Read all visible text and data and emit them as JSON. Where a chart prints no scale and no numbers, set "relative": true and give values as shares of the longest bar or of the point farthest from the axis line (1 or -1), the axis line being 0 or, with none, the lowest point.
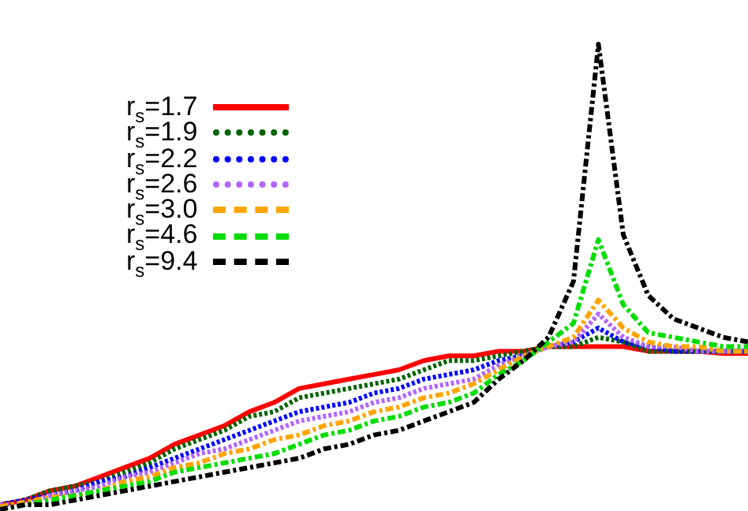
{
  "chart_data": {
    "type": "line",
    "relative": true,
    "tick_labels": false,
    "legend": "top left",
    "grid": false,
    "marker": "none",
    "categories": [
      null,
      null,
      null,
      null,
      null,
      null,
      null,
      null,
      null,
      null,
      null,
      null,
      null,
      null,
      null,
      null,
      null,
      null,
      null,
      null,
      null,
      null,
      null,
      null,
      null,
      null,
      null,
      null,
      null,
      null,
      null
    ],
    "series": [
      {
        "name": "r$_{s}$=1.7",
        "color": "#ff0000",
        "line_style": "solid",
        "values": [
          0.01,
          0.02,
          0.04,
          0.05,
          0.07,
          0.09,
          0.11,
          0.14,
          0.16,
          0.18,
          0.21,
          0.23,
          0.26,
          0.27,
          0.28,
          0.29,
          0.3,
          0.32,
          0.33,
          0.33,
          0.34,
          0.34,
          0.35,
          0.35,
          0.35,
          0.35,
          0.34,
          0.34,
          0.34,
          0.335,
          0.335
        ]
      },
      {
        "name": "r$_{s}$=1.9",
        "color": "#006400",
        "line_style": "dotted",
        "values": [
          0.01,
          0.02,
          0.04,
          0.05,
          0.06,
          0.08,
          0.1,
          0.13,
          0.15,
          0.17,
          0.2,
          0.21,
          0.24,
          0.25,
          0.26,
          0.27,
          0.28,
          0.3,
          0.32,
          0.32,
          0.33,
          0.34,
          0.35,
          0.35,
          0.37,
          0.36,
          0.34,
          0.34,
          0.34,
          0.34,
          0.34
        ]
      },
      {
        "name": "r$_{s}$=2.2",
        "color": "#0000ff",
        "line_style": "dotted",
        "values": [
          0.01,
          0.02,
          0.03,
          0.04,
          0.06,
          0.07,
          0.09,
          0.11,
          0.13,
          0.15,
          0.17,
          0.19,
          0.21,
          0.22,
          0.23,
          0.25,
          0.26,
          0.28,
          0.29,
          0.3,
          0.32,
          0.33,
          0.35,
          0.36,
          0.39,
          0.36,
          0.35,
          0.34,
          0.34,
          0.34,
          0.34
        ]
      },
      {
        "name": "r$_{s}$=2.6",
        "color": "#b266ff",
        "line_style": "dotted",
        "values": [
          0.01,
          0.01,
          0.03,
          0.04,
          0.05,
          0.07,
          0.08,
          0.1,
          0.12,
          0.13,
          0.15,
          0.17,
          0.19,
          0.2,
          0.21,
          0.23,
          0.24,
          0.26,
          0.27,
          0.28,
          0.31,
          0.33,
          0.35,
          0.36,
          0.42,
          0.37,
          0.35,
          0.35,
          0.34,
          0.34,
          0.34
        ]
      },
      {
        "name": "r$_{s}$=3.0",
        "color": "#ffa500",
        "line_style": "dashed",
        "values": [
          0.006,
          0.016,
          0.026,
          0.03,
          0.04,
          0.06,
          0.07,
          0.09,
          0.1,
          0.12,
          0.13,
          0.15,
          0.16,
          0.18,
          0.19,
          0.21,
          0.22,
          0.24,
          0.25,
          0.27,
          0.3,
          0.33,
          0.35,
          0.37,
          0.45,
          0.39,
          0.36,
          0.35,
          0.35,
          0.34,
          0.34
        ]
      },
      {
        "name": "r$_{s}$=4.6",
        "color": "#00dd00",
        "line_style": "dashed",
        "values": [
          0.0,
          0.01,
          0.02,
          0.03,
          0.04,
          0.05,
          0.06,
          0.08,
          0.09,
          0.1,
          0.11,
          0.12,
          0.14,
          0.16,
          0.17,
          0.19,
          0.2,
          0.22,
          0.23,
          0.25,
          0.29,
          0.32,
          0.36,
          0.4,
          0.58,
          0.44,
          0.38,
          0.37,
          0.36,
          0.35,
          0.35
        ]
      },
      {
        "name": "r$_{s}$=9.4",
        "color": "#000000",
        "line_style": "dashed",
        "values": [
          0.0,
          0.01,
          0.01,
          0.02,
          0.03,
          0.04,
          0.05,
          0.06,
          0.07,
          0.08,
          0.09,
          0.1,
          0.11,
          0.13,
          0.14,
          0.16,
          0.17,
          0.19,
          0.21,
          0.23,
          0.28,
          0.32,
          0.37,
          0.49,
          1,
          0.59,
          0.46,
          0.41,
          0.39,
          0.37,
          0.36
        ]
      }
    ]
  }
}
